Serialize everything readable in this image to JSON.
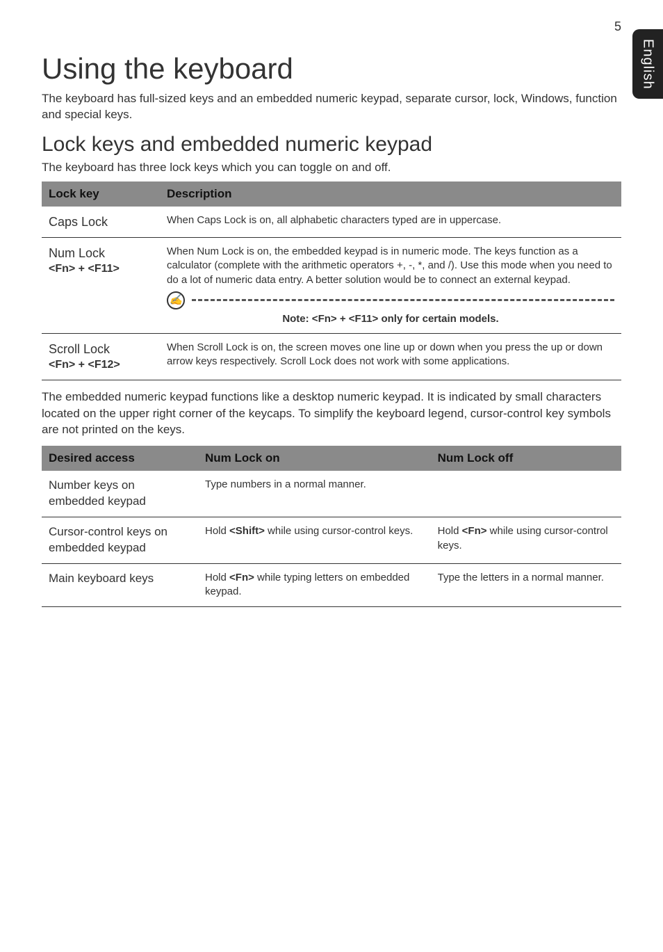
{
  "page_number": "5",
  "side_tab": "English",
  "h1": "Using the keyboard",
  "intro": "The keyboard has full-sized keys and an embedded numeric keypad, separate cursor, lock, Windows, function and special keys.",
  "h2": "Lock keys and embedded numeric keypad",
  "sub": "The keyboard has three lock keys which you can toggle on and off.",
  "lock_table": {
    "headers": {
      "c1": "Lock key",
      "c2": "Description"
    },
    "rows": [
      {
        "key": "Caps Lock",
        "combo": "",
        "desc": "When Caps Lock is on, all alphabetic characters typed are in uppercase."
      },
      {
        "key": "Num Lock",
        "combo": "<Fn> + <F11>",
        "desc": "When Num Lock is on, the embedded keypad is in numeric mode. The keys function as a calculator (complete with the arithmetic operators +, -, *, and /). Use this mode when you need to do a lot of numeric data entry. A better solution would be to connect an external keypad.",
        "note": "Note: <Fn> + <F11> only for certain models."
      },
      {
        "key": "Scroll Lock",
        "combo": "<Fn> + <F12>",
        "desc": "When Scroll Lock is on, the screen moves one line up or down when you press the up or down arrow keys respectively. Scroll Lock does not work with some applications."
      }
    ]
  },
  "para": "The embedded numeric keypad functions like a desktop numeric keypad. It is indicated by small characters located on the upper right corner of the keycaps. To simplify the keyboard legend, cursor-control key symbols are not printed on the keys.",
  "access_table": {
    "headers": {
      "c1": "Desired access",
      "c2": "Num Lock on",
      "c3": "Num Lock off"
    },
    "rows": [
      {
        "c1": "Number keys on embedded keypad",
        "c2": "Type numbers in a normal manner.",
        "c3": ""
      },
      {
        "c1": "Cursor-control keys on embedded keypad",
        "c2_pre": "Hold ",
        "c2_bold": "<Shift>",
        "c2_post": " while using cursor-control keys.",
        "c3_pre": "Hold ",
        "c3_bold": "<Fn>",
        "c3_post": " while using cursor-control keys."
      },
      {
        "c1": "Main keyboard keys",
        "c2_pre": "Hold ",
        "c2_bold": "<Fn>",
        "c2_post": " while typing letters on embedded keypad.",
        "c3": "Type the letters in a normal manner."
      }
    ]
  }
}
